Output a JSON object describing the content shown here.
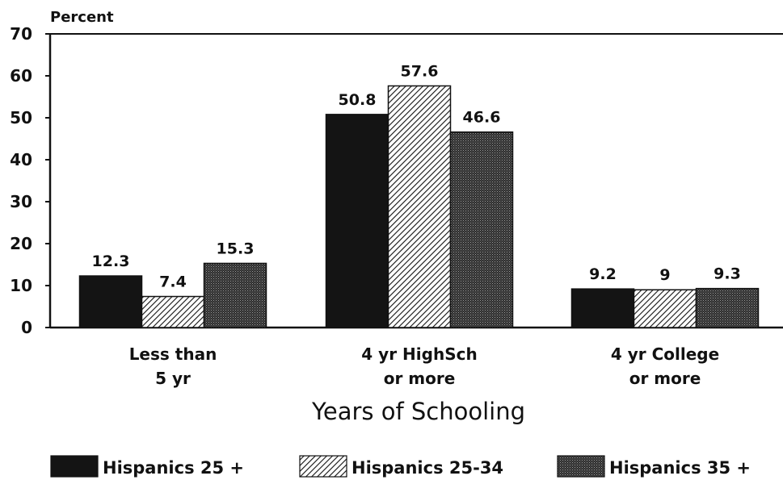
{
  "chart_data": {
    "type": "bar",
    "ylabel": "Percent",
    "xlabel": "Years of Schooling",
    "ylim": [
      0,
      70
    ],
    "yticks": [
      0,
      10,
      20,
      30,
      40,
      50,
      60,
      70
    ],
    "categories": [
      [
        "Less than",
        "5 yr"
      ],
      [
        "4 yr HighSch",
        "or more"
      ],
      [
        "4 yr College",
        "or more"
      ]
    ],
    "value_labels": [
      [
        "12.3",
        "7.4",
        "15.3"
      ],
      [
        "50.8",
        "57.6",
        "46.6"
      ],
      [
        "9.2",
        "9",
        "9.3"
      ]
    ],
    "series": [
      {
        "name": "Hispanics 25 +",
        "values": [
          12.3,
          50.8,
          9.2
        ],
        "color": "#141414",
        "pattern": "solid"
      },
      {
        "name": "Hispanics 25-34",
        "values": [
          7.4,
          57.6,
          9.0
        ],
        "color": "#ffffff",
        "pattern": "diagonal"
      },
      {
        "name": "Hispanics 35 +",
        "values": [
          15.3,
          46.6,
          9.3
        ],
        "color": "#3a3a3a",
        "pattern": "dots"
      }
    ],
    "legend_position": "bottom",
    "grid": false
  }
}
